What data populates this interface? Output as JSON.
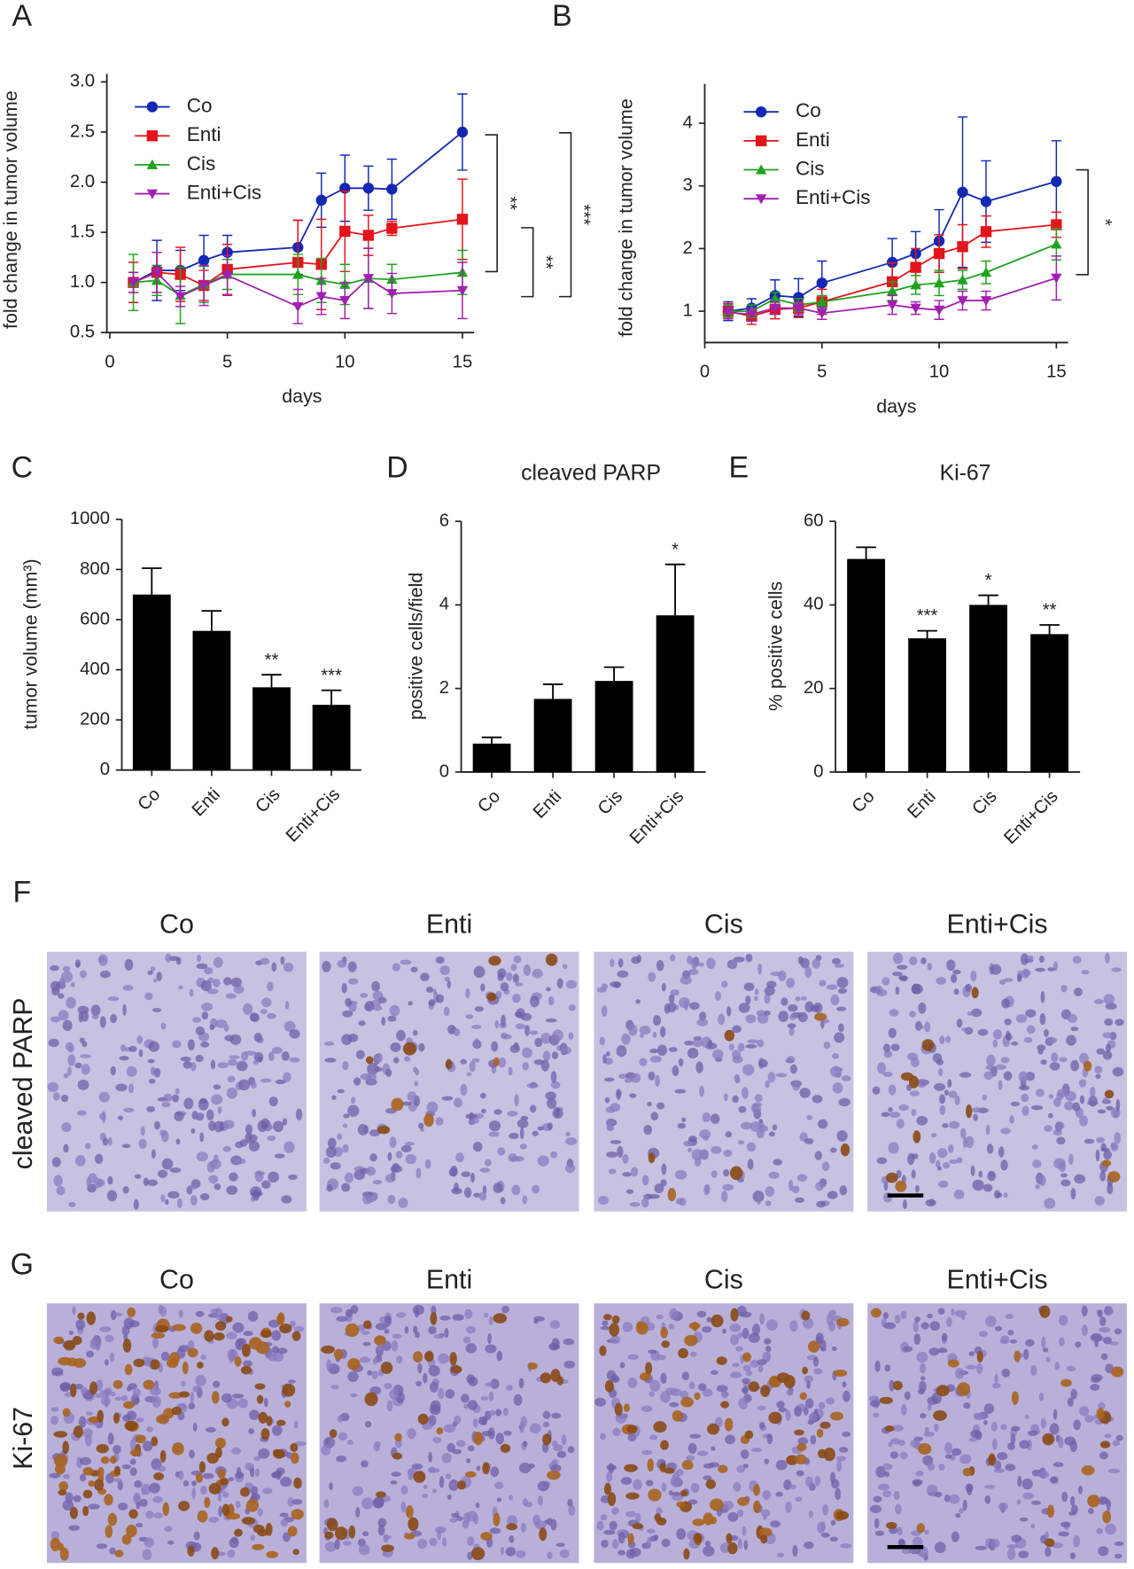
{
  "panels": [
    "A",
    "B",
    "C",
    "D",
    "E",
    "F",
    "G"
  ],
  "chart_data": [
    {
      "type": "line",
      "x_label": "days",
      "y_label": "fold change in tumor volume",
      "x": [
        1,
        2,
        3,
        4,
        5,
        8,
        9,
        10,
        11,
        12,
        15
      ],
      "xlim": [
        0,
        15.5
      ],
      "xticks": [
        0,
        5,
        10,
        15
      ],
      "ylim": [
        0.5,
        3.0
      ],
      "yticks": [
        {
          "value": 0.5,
          "label": "0.5"
        },
        {
          "value": 1.0,
          "label": "1.0"
        },
        {
          "value": 1.5,
          "label": "1.5"
        },
        {
          "value": 2.0,
          "label": "2.0"
        },
        {
          "value": 2.5,
          "label": "2.5"
        },
        {
          "value": 3.0,
          "label": "3.0"
        }
      ],
      "legend": "upper left",
      "series": [
        {
          "name": "Co",
          "color": "#1428b4",
          "marker": "circle",
          "values": [
            1.0,
            1.12,
            1.12,
            1.22,
            1.3,
            1.35,
            1.82,
            1.94,
            1.94,
            1.93,
            2.5
          ],
          "errors": [
            0.1,
            0.3,
            0.2,
            0.25,
            0.17,
            0.27,
            0.27,
            0.33,
            0.22,
            0.3,
            0.38
          ]
        },
        {
          "name": "Enti",
          "color": "#e3141b",
          "marker": "square",
          "values": [
            1.0,
            1.1,
            1.08,
            0.97,
            1.13,
            1.2,
            1.18,
            1.51,
            1.47,
            1.54,
            1.63
          ],
          "errors": [
            0.2,
            0.2,
            0.27,
            0.15,
            0.25,
            0.42,
            0.45,
            0.4,
            0.2,
            0.07,
            0.4
          ]
        },
        {
          "name": "Cis",
          "color": "#1fa31f",
          "marker": "triangle",
          "values": [
            1.0,
            1.02,
            0.87,
            0.98,
            1.08,
            1.08,
            1.02,
            0.98,
            1.04,
            1.03,
            1.1
          ],
          "errors": [
            0.28,
            0.15,
            0.28,
            0.18,
            0.15,
            0.2,
            0.22,
            0.2,
            0.3,
            0.15,
            0.22
          ]
        },
        {
          "name": "Enti+Cis",
          "color": "#a020b0",
          "marker": "triangle-down",
          "values": [
            1.0,
            1.1,
            0.86,
            0.97,
            1.07,
            0.76,
            0.86,
            0.82,
            1.04,
            0.89,
            0.92
          ],
          "errors": [
            0.1,
            0.2,
            0.1,
            0.2,
            0.2,
            0.17,
            0.18,
            0.18,
            0.3,
            0.2,
            0.28
          ]
        }
      ],
      "annotations": [
        "**",
        "**",
        "***"
      ]
    },
    {
      "type": "line",
      "x_label": "days",
      "y_label": "fold change in tumor volume",
      "x": [
        1,
        2,
        3,
        4,
        5,
        8,
        9,
        10,
        11,
        12,
        15
      ],
      "xlim": [
        0,
        15.5
      ],
      "xticks": [
        0,
        5,
        10,
        15
      ],
      "ylim": [
        0.5,
        4.5
      ],
      "yticks": [
        1,
        2,
        3,
        4
      ],
      "legend": "upper left",
      "series": [
        {
          "name": "Co",
          "color": "#1428b4",
          "marker": "circle",
          "values": [
            1.0,
            1.05,
            1.25,
            1.22,
            1.45,
            1.78,
            1.92,
            2.12,
            2.9,
            2.75,
            3.07
          ],
          "errors": [
            0.15,
            0.15,
            0.25,
            0.3,
            0.35,
            0.38,
            0.35,
            0.5,
            1.2,
            0.65,
            0.65
          ]
        },
        {
          "name": "Enti",
          "color": "#e3141b",
          "marker": "square",
          "values": [
            1.0,
            0.92,
            1.03,
            1.05,
            1.15,
            1.47,
            1.7,
            1.92,
            2.03,
            2.27,
            2.38
          ],
          "errors": [
            0.12,
            0.13,
            0.15,
            0.15,
            0.2,
            0.3,
            0.3,
            0.3,
            0.35,
            0.25,
            0.2
          ]
        },
        {
          "name": "Cis",
          "color": "#1fa31f",
          "marker": "triangle",
          "values": [
            1.0,
            1.0,
            1.2,
            1.1,
            1.15,
            1.32,
            1.42,
            1.45,
            1.5,
            1.62,
            2.07
          ],
          "errors": [
            0.1,
            0.1,
            0.1,
            0.1,
            0.1,
            0.15,
            0.15,
            0.2,
            0.15,
            0.18,
            0.25
          ]
        },
        {
          "name": "Enti+Cis",
          "color": "#a020b0",
          "marker": "triangle-down",
          "values": [
            0.98,
            0.95,
            1.05,
            1.05,
            0.97,
            1.1,
            1.05,
            1.02,
            1.17,
            1.17,
            1.53
          ],
          "errors": [
            0.1,
            0.1,
            0.1,
            0.1,
            0.1,
            0.15,
            0.1,
            0.15,
            0.15,
            0.15,
            0.35
          ]
        }
      ],
      "annotations": [
        "*"
      ]
    },
    {
      "type": "bar",
      "y_label": "tumor volume (mm³)",
      "categories": [
        "Co",
        "Enti",
        "Cis",
        "Enti+Cis"
      ],
      "values": [
        700,
        555,
        330,
        260
      ],
      "errors": [
        105,
        80,
        50,
        58
      ],
      "color": "#000000",
      "ylim": [
        0,
        1000
      ],
      "yticks": [
        0,
        200,
        400,
        600,
        800,
        1000
      ],
      "significance": [
        null,
        null,
        "**",
        "***"
      ]
    },
    {
      "type": "bar",
      "title": "cleaved PARP",
      "y_label": "positive cells/field",
      "categories": [
        "Co",
        "Enti",
        "Cis",
        "Enti+Cis"
      ],
      "values": [
        0.68,
        1.75,
        2.18,
        3.75
      ],
      "errors": [
        0.15,
        0.35,
        0.33,
        1.22
      ],
      "color": "#000000",
      "ylim": [
        0,
        6
      ],
      "yticks": [
        0,
        2,
        4,
        6
      ],
      "significance": [
        null,
        null,
        null,
        "*"
      ]
    },
    {
      "type": "bar",
      "title": "Ki-67",
      "y_label": "% positive cells",
      "categories": [
        "Co",
        "Enti",
        "Cis",
        "Enti+Cis"
      ],
      "values": [
        51,
        32,
        40,
        33
      ],
      "errors": [
        2.8,
        1.8,
        2.3,
        2.2
      ],
      "color": "#000000",
      "ylim": [
        0,
        60
      ],
      "yticks": [
        0,
        20,
        40,
        60
      ],
      "significance": [
        null,
        "***",
        "*",
        "**"
      ]
    }
  ],
  "micrographs": [
    {
      "label": "cleaved PARP",
      "columns": [
        "Co",
        "Enti",
        "Cis",
        "Enti+Cis"
      ]
    },
    {
      "label": "Ki-67",
      "columns": [
        "Co",
        "Enti",
        "Cis",
        "Enti+Cis"
      ]
    }
  ]
}
